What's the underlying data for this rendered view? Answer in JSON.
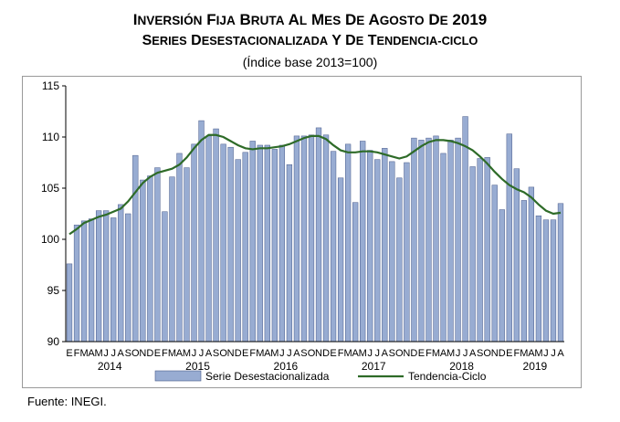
{
  "title_line1": "Inversión Fija Bruta al mes de agosto de 2019",
  "title_line2": "Series desestacionalizada y de tendencia-ciclo",
  "title_line3": "(Índice base 2013=100)",
  "source": "Fuente: INEGI.",
  "colors": {
    "bar_fill": "#98acd2",
    "bar_stroke": "#485a8a",
    "trend": "#2e6b28",
    "axis": "#000000"
  },
  "chart_data": {
    "type": "bar",
    "ylim": [
      90,
      115
    ],
    "yticks": [
      90,
      95,
      100,
      105,
      110,
      115
    ],
    "grid": false,
    "legend_position": "bottom",
    "month_labels": [
      "E",
      "F",
      "M",
      "A",
      "M",
      "J",
      "J",
      "A",
      "S",
      "O",
      "N",
      "D",
      "E",
      "F",
      "M",
      "A",
      "M",
      "J",
      "J",
      "A",
      "S",
      "O",
      "N",
      "D",
      "E",
      "F",
      "M",
      "A",
      "M",
      "J",
      "J",
      "A",
      "S",
      "O",
      "N",
      "D",
      "E",
      "F",
      "M",
      "A",
      "M",
      "J",
      "J",
      "A",
      "S",
      "O",
      "N",
      "D",
      "E",
      "F",
      "M",
      "A",
      "M",
      "J",
      "J",
      "A",
      "S",
      "O",
      "N",
      "D",
      "E",
      "F",
      "M",
      "A",
      "M",
      "J",
      "J",
      "A"
    ],
    "years": [
      {
        "label": "2014",
        "start": 0,
        "end": 11
      },
      {
        "label": "2015",
        "start": 12,
        "end": 23
      },
      {
        "label": "2016",
        "start": 24,
        "end": 35
      },
      {
        "label": "2017",
        "start": 36,
        "end": 47
      },
      {
        "label": "2018",
        "start": 48,
        "end": 59
      },
      {
        "label": "2019",
        "start": 60,
        "end": 67
      }
    ],
    "series": [
      {
        "name": "Serie Desestacionalizada",
        "type": "bar",
        "values": [
          97.6,
          101.4,
          101.8,
          102.0,
          102.8,
          102.8,
          102.1,
          103.4,
          102.5,
          108.2,
          105.8,
          106.2,
          107.0,
          102.7,
          106.1,
          108.4,
          107.0,
          109.3,
          111.6,
          110.1,
          110.8,
          109.3,
          109.0,
          107.8,
          108.5,
          109.6,
          109.2,
          109.2,
          108.8,
          109.2,
          107.3,
          110.1,
          110.1,
          110.2,
          110.9,
          110.2,
          108.6,
          106.0,
          109.3,
          103.6,
          109.6,
          108.7,
          107.8,
          108.9,
          107.6,
          106.0,
          107.5,
          109.9,
          109.7,
          109.9,
          110.1,
          108.4,
          109.7,
          109.9,
          112.0,
          107.1,
          107.9,
          108.0,
          105.3,
          102.9,
          110.3,
          106.9,
          103.8,
          105.1,
          102.3,
          101.9,
          101.9,
          103.5
        ]
      },
      {
        "name": "Tendencia-Ciclo",
        "type": "line",
        "values": [
          100.5,
          101.0,
          101.6,
          101.9,
          102.2,
          102.4,
          102.7,
          103.0,
          103.7,
          104.6,
          105.5,
          106.1,
          106.5,
          106.7,
          106.9,
          107.3,
          108.0,
          108.9,
          109.7,
          110.2,
          110.2,
          110.0,
          109.6,
          109.2,
          108.9,
          108.8,
          108.9,
          108.9,
          109.0,
          109.1,
          109.3,
          109.6,
          109.9,
          110.1,
          110.1,
          109.8,
          109.2,
          108.7,
          108.5,
          108.5,
          108.6,
          108.6,
          108.5,
          108.3,
          108.1,
          107.9,
          108.1,
          108.6,
          109.1,
          109.5,
          109.7,
          109.7,
          109.6,
          109.4,
          109.1,
          108.7,
          108.1,
          107.4,
          106.6,
          105.9,
          105.3,
          104.9,
          104.6,
          104.1,
          103.4,
          102.8,
          102.5,
          102.6
        ]
      }
    ],
    "xlabel": "",
    "ylabel": "",
    "title": ""
  }
}
